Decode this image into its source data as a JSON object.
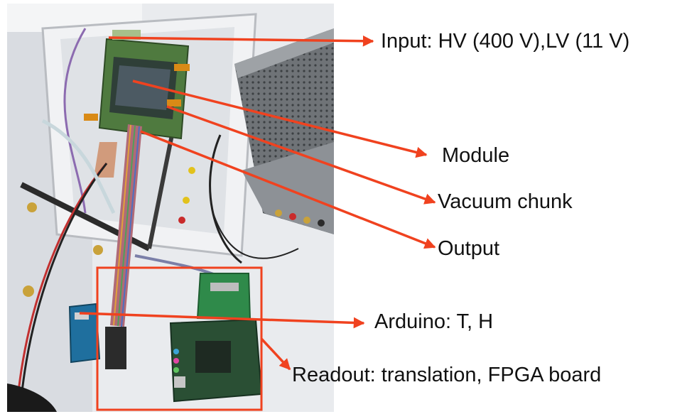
{
  "colors": {
    "annotation": "#f0421f",
    "label_text": "#111111",
    "background": "#ffffff"
  },
  "photo": {
    "description_icon": "lab-setup-photo"
  },
  "annotations": [
    {
      "id": "input",
      "text": "Input: HV (400 V),LV (11 V)"
    },
    {
      "id": "module",
      "text": "Module"
    },
    {
      "id": "vacuum",
      "text": "Vacuum chunk"
    },
    {
      "id": "output",
      "text": "Output"
    },
    {
      "id": "arduino",
      "text": "Arduino: T, H"
    },
    {
      "id": "readout",
      "text": "Readout: translation, FPGA board"
    }
  ]
}
